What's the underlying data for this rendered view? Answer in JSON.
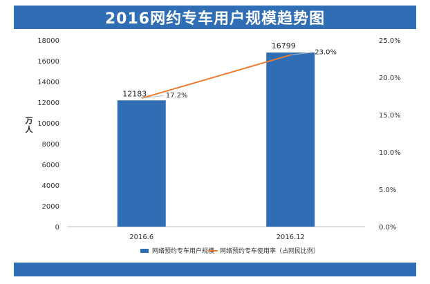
{
  "chart_data": {
    "type": "bar",
    "title": "2016网约专车用户规模趋势图",
    "categories": [
      "2016.6",
      "2016.12"
    ],
    "series": [
      {
        "name": "网络预约专车用户规模",
        "type": "bar",
        "axis": "left",
        "values": [
          12183,
          16799
        ],
        "labels": [
          "12183",
          "16799"
        ]
      },
      {
        "name": "网络预约专车使用率（占网民比例）",
        "type": "line",
        "axis": "right",
        "values": [
          17.2,
          23.0
        ],
        "labels": [
          "17.2%",
          "23.0%"
        ]
      }
    ],
    "ylabel": "万人",
    "ylim": [
      0,
      18000
    ],
    "y_ticks": [
      "0",
      "2000",
      "4000",
      "6000",
      "8000",
      "10000",
      "12000",
      "14000",
      "16000",
      "18000"
    ],
    "y2lim": [
      0,
      25
    ],
    "y2_ticks": [
      "0.0%",
      "5.0%",
      "10.0%",
      "15.0%",
      "20.0%",
      "25.0%"
    ],
    "grid": false,
    "legend_position": "bottom",
    "colors": {
      "bar": "#2f6eb5",
      "line": "#ed7d31",
      "header": "#2f6eb5"
    }
  }
}
